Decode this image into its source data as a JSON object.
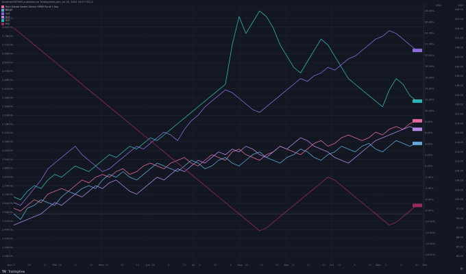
{
  "header": {
    "text": "beatthe0987969 published on TradingView.com, Jul 25, 2024 16:07 UTC-4"
  },
  "colors": {
    "background": "#131722",
    "grid": "#1f2330",
    "axis_text": "#787b86",
    "base_line": "#3a3f4e",
    "main_axis_line": "#2a2e39"
  },
  "chart_data": {
    "type": "line",
    "title": "Real Estate Select Sector SPDR Fund, 1 Day, NYSE",
    "x_ticks": [
      "Apr",
      "Mar",
      "May",
      "Jun",
      "Jul",
      "Aug",
      "Sep",
      "Oct",
      "Nov",
      "Dec"
    ],
    "x_tick_positions": [
      14,
      80,
      148,
      216,
      282,
      350,
      418,
      484,
      552,
      620
    ],
    "minor_x_ticks": [
      "15",
      "29",
      "12",
      "26",
      "17",
      "31",
      "14",
      "28",
      "12",
      "26",
      "9",
      "23",
      "6",
      "20",
      "4",
      "18",
      "15",
      "29",
      "13",
      "27",
      "10",
      "24",
      "8",
      "22",
      "3",
      "17",
      "31"
    ],
    "y_left_ticks": [
      "2.9600%",
      "2.9000%",
      "2.8400%",
      "2.7800%",
      "2.7200%",
      "2.6600%",
      "2.6000%",
      "2.5400%",
      "2.4800%",
      "2.4200%",
      "2.3600%",
      "2.3000%",
      "2.2400%",
      "2.1800%",
      "2.1200%",
      "2.0600%",
      "2.0000%",
      "1.9400%",
      "1.8800%",
      "1.8200%",
      "1.7600%",
      "1.7000%",
      "1.6400%",
      "1.5800%",
      "1.5200%",
      "1.4600%",
      "1.4000%",
      "1.3400%",
      "1.2800%"
    ],
    "y_mid_ticks": [
      "28.00%",
      "26.00%",
      "24.00%",
      "22.00%",
      "20.00%",
      "18.00%",
      "16.00%",
      "14.00%",
      "12.00%",
      "10.00%",
      "8.00%",
      "6.00%",
      "4.00%",
      "2.00%",
      "0.00%",
      "-2.00%",
      "-4.00%",
      "-6.00%",
      "-8.00%",
      "-10.00%",
      "-12.00%",
      "-14.00%",
      "-16.00%"
    ],
    "y_right_ticks": [
      "160.00",
      "157.00",
      "154.00",
      "151.00",
      "148.00",
      "145.00",
      "142.00",
      "139.00",
      "136.00",
      "133.00",
      "130.00",
      "127.00",
      "124.00",
      "121.00",
      "118.00",
      "115.00",
      "112.00",
      "109.00",
      "106.00",
      "103.00",
      "100.00",
      "97.00",
      "94.00",
      "91.00",
      "88.00",
      "85.00",
      "82.00"
    ],
    "y_right_extra": [
      "USD",
      "USD"
    ],
    "series": [
      {
        "name": "Real Estate Select Sector SPDR Fund 1 Day",
        "color": "#e06b9a",
        "values": [
          2,
          1,
          3,
          5,
          4,
          7,
          8,
          9,
          8,
          10,
          12,
          11,
          13,
          14,
          13,
          15,
          16,
          14,
          15,
          17,
          18,
          17,
          16,
          18,
          19,
          20,
          18,
          17,
          19,
          21,
          20,
          19,
          22,
          23,
          21,
          20,
          19,
          21,
          22,
          24,
          23,
          22,
          21,
          23,
          25,
          26,
          24,
          25,
          27,
          28,
          27,
          26,
          27,
          29,
          28,
          30,
          31,
          30,
          32,
          33
        ]
      },
      {
        "name": "XLRE",
        "color": "#5fa8d3",
        "values": [
          0,
          -2,
          2,
          3,
          5,
          4,
          3,
          6,
          8,
          7,
          9,
          10,
          9,
          12,
          14,
          13,
          15,
          13,
          12,
          14,
          16,
          18,
          17,
          16,
          15,
          17,
          19,
          18,
          16,
          17,
          19,
          20,
          18,
          17,
          19,
          21,
          22,
          20,
          19,
          18,
          20,
          21,
          23,
          22,
          20,
          19,
          21,
          22,
          24,
          23,
          22,
          24,
          25,
          23,
          22,
          24,
          26,
          25,
          24,
          25
        ]
      },
      {
        "name": "VLE",
        "color": "#8a6ed8",
        "values": [
          4,
          3,
          6,
          9,
          12,
          16,
          18,
          20,
          22,
          24,
          21,
          19,
          17,
          15,
          16,
          18,
          20,
          22,
          24,
          23,
          25,
          27,
          29,
          28,
          26,
          30,
          33,
          35,
          38,
          40,
          42,
          44,
          43,
          41,
          39,
          37,
          36,
          38,
          40,
          42,
          44,
          46,
          48,
          47,
          49,
          50,
          52,
          51,
          53,
          55,
          56,
          58,
          60,
          62,
          63,
          65,
          64,
          62,
          60,
          58
        ]
      },
      {
        "name": "RLE",
        "color": "#b388e6",
        "values": [
          -4,
          -3,
          -2,
          -1,
          0,
          2,
          4,
          3,
          5,
          7,
          6,
          8,
          10,
          9,
          11,
          12,
          10,
          8,
          7,
          9,
          11,
          13,
          12,
          14,
          16,
          15,
          17,
          19,
          18,
          20,
          22,
          21,
          23,
          22,
          24,
          23,
          21,
          20,
          22,
          24,
          23,
          25,
          27,
          26,
          24,
          23,
          22,
          20,
          19,
          18,
          20,
          22,
          24,
          26,
          27,
          28,
          29,
          30,
          31,
          30
        ]
      },
      {
        "name": "SLR",
        "color": "#2fb6b9",
        "values": [
          6,
          5,
          8,
          10,
          9,
          12,
          14,
          13,
          15,
          17,
          16,
          15,
          17,
          19,
          21,
          20,
          22,
          24,
          23,
          25,
          27,
          26,
          28,
          30,
          32,
          34,
          36,
          38,
          40,
          42,
          44,
          46,
          60,
          70,
          64,
          68,
          72,
          70,
          66,
          60,
          56,
          52,
          50,
          54,
          58,
          62,
          60,
          56,
          52,
          48,
          46,
          44,
          42,
          40,
          38,
          44,
          48,
          46,
          42,
          40
        ]
      },
      {
        "name": "PLE",
        "color": "#9a2a5a",
        "values": [
          66,
          64,
          62,
          60,
          58,
          56,
          54,
          52,
          50,
          48,
          46,
          44,
          42,
          40,
          38,
          36,
          34,
          32,
          30,
          28,
          26,
          24,
          22,
          20,
          18,
          16,
          14,
          12,
          10,
          8,
          6,
          4,
          2,
          0,
          -2,
          -4,
          -6,
          -5,
          -3,
          -1,
          1,
          3,
          5,
          7,
          9,
          11,
          13,
          12,
          10,
          8,
          6,
          4,
          2,
          0,
          -2,
          -4,
          -3,
          -1,
          1,
          3
        ]
      }
    ],
    "grid": true,
    "legend_position": "top-left"
  },
  "labels": {
    "footer": "TradingView",
    "footer_logo": "TV",
    "gear_icon": "⚙"
  }
}
